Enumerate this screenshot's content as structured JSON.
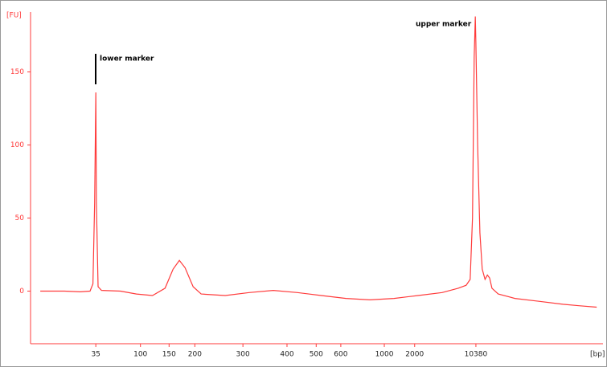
{
  "chart_data": {
    "type": "line",
    "x_label": "[bp]",
    "y_label": "[FU]",
    "annotations": [
      "lower marker",
      "upper marker"
    ],
    "x": [
      1.7,
      5.9,
      8.7,
      10.4,
      10.9,
      11.2,
      11.4,
      11.5,
      11.8,
      12.4,
      15.7,
      18.5,
      21.3,
      23.5,
      24.9,
      26.0,
      27.0,
      28.4,
      29.8,
      34.0,
      38.2,
      42.4,
      46.6,
      50.8,
      55.1,
      59.3,
      63.5,
      67.7,
      71.9,
      74.7,
      76.1,
      76.8,
      77.2,
      77.5,
      77.7,
      77.8,
      78.1,
      78.5,
      78.9,
      79.4,
      79.8,
      80.2,
      80.6,
      81.7,
      84.6,
      88.8,
      93.0,
      95.8,
      98.9
    ],
    "series": [
      {
        "color": "#ff3b3b",
        "values": [
          0,
          0,
          -0.5,
          0,
          5,
          60,
          136,
          60,
          3,
          0.5,
          0,
          -2,
          -3,
          2,
          15,
          21,
          16,
          3,
          -2,
          -3,
          -1,
          0.5,
          -1,
          -3,
          -5,
          -6,
          -5,
          -3,
          -1,
          2,
          4,
          8,
          50,
          160,
          188,
          170,
          100,
          40,
          15,
          8,
          11,
          9,
          2,
          -2,
          -5,
          -7,
          -9,
          -10,
          -11
        ]
      }
    ],
    "xlim": [
      0,
      100
    ],
    "xticks": [
      {
        "value": 11.4,
        "label": "35"
      },
      {
        "value": 19.2,
        "label": "100"
      },
      {
        "value": 24.2,
        "label": "150"
      },
      {
        "value": 28.7,
        "label": "200"
      },
      {
        "value": 37.1,
        "label": "300"
      },
      {
        "value": 44.8,
        "label": "400"
      },
      {
        "value": 49.9,
        "label": "500"
      },
      {
        "value": 54.2,
        "label": "600"
      },
      {
        "value": 61.8,
        "label": "1000"
      },
      {
        "value": 67.1,
        "label": "2000"
      },
      {
        "value": 77.8,
        "label": "10380"
      }
    ],
    "ylim": [
      -36,
      191
    ],
    "yticks": [
      0,
      50,
      100,
      150
    ]
  }
}
